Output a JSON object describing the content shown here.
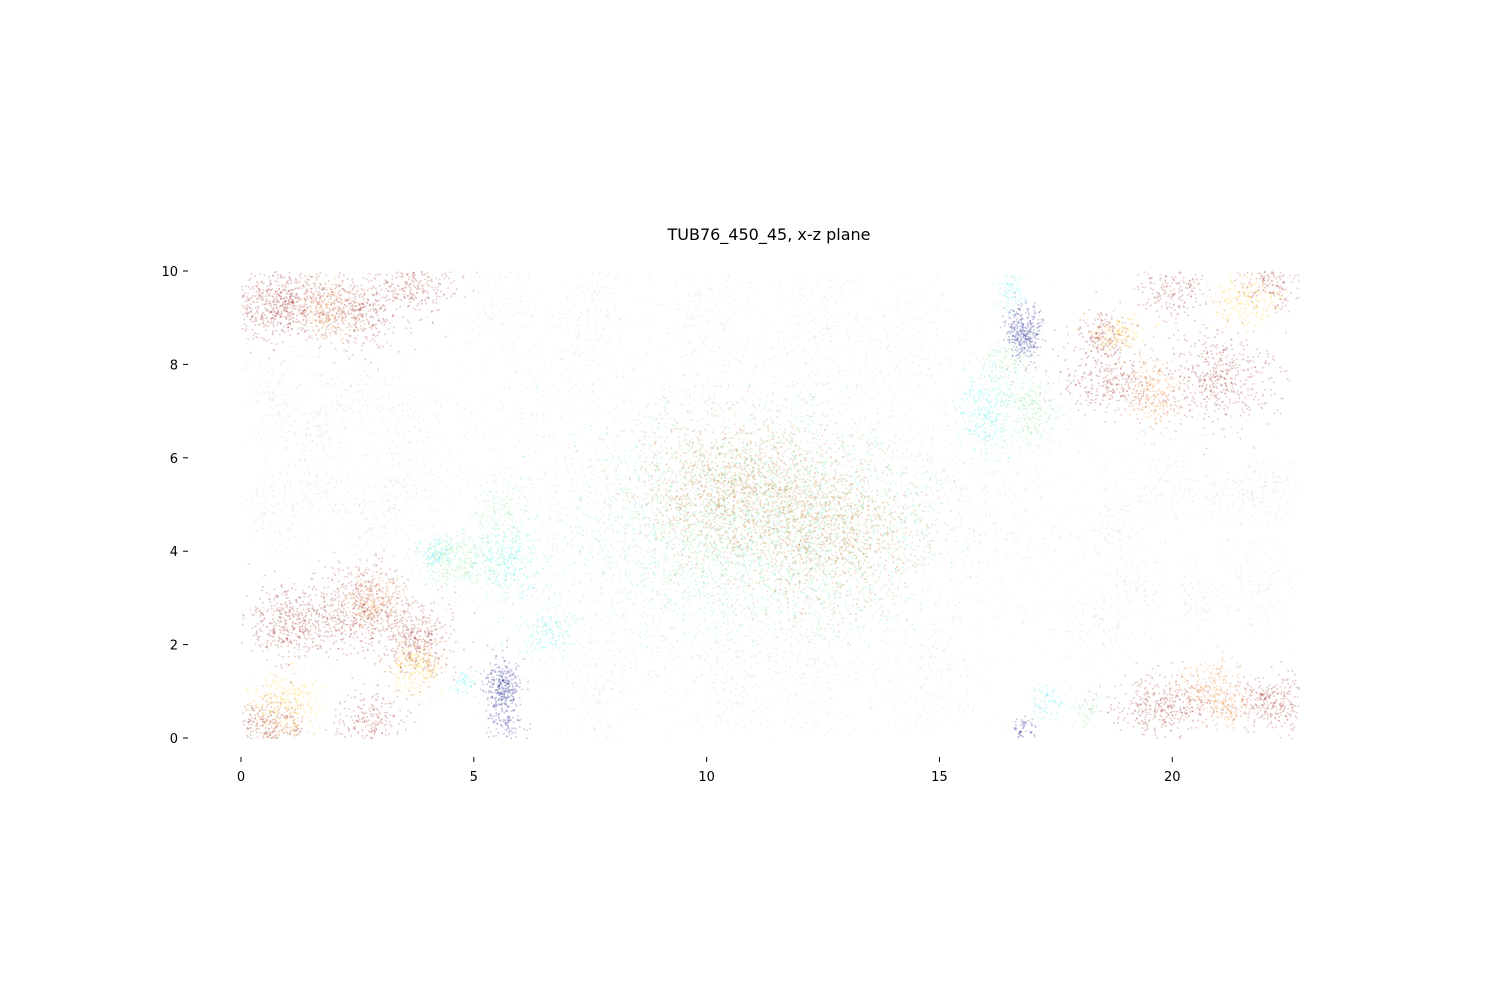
{
  "chart_data": {
    "type": "scatter",
    "title": "TUB76_450_45, x-z plane",
    "xlabel": "",
    "ylabel": "",
    "xlim": [
      0,
      22.7
    ],
    "ylim": [
      0,
      10
    ],
    "xticks": [
      "0",
      "5",
      "10",
      "15",
      "20"
    ],
    "yticks": [
      "0",
      "2",
      "4",
      "6",
      "8",
      "10"
    ],
    "grid": false,
    "legend": "none",
    "point_alpha": "low (dense translucent point cloud)",
    "colors": {
      "grey": "#a0a0a0",
      "dark_red": "#8b0000",
      "orange": "#e8720c",
      "gold": "#ffc20a",
      "navy": "#000080",
      "cyan": "#2ee8e8",
      "light_green": "#7de38a",
      "turquoise": "#40e0c0",
      "brown": "#b8620a"
    },
    "clusters": [
      {
        "color": "grey",
        "x": 10.5,
        "y": 5.0,
        "sx": 7.5,
        "sy": 2.6,
        "n": 2200
      },
      {
        "color": "grey",
        "x": 0.7,
        "y": 7.2,
        "sx": 0.3,
        "sy": 0.5,
        "n": 120
      },
      {
        "color": "grey",
        "x": 1.5,
        "y": 6.6,
        "sx": 0.3,
        "sy": 0.4,
        "n": 110
      },
      {
        "color": "grey",
        "x": 2.4,
        "y": 7.4,
        "sx": 0.4,
        "sy": 0.4,
        "n": 110
      },
      {
        "color": "grey",
        "x": 3.5,
        "y": 6.8,
        "sx": 0.4,
        "sy": 0.4,
        "n": 110
      },
      {
        "color": "grey",
        "x": 0.8,
        "y": 4.9,
        "sx": 0.4,
        "sy": 0.4,
        "n": 120
      },
      {
        "color": "grey",
        "x": 1.6,
        "y": 5.4,
        "sx": 0.4,
        "sy": 0.3,
        "n": 100
      },
      {
        "color": "grey",
        "x": 2.8,
        "y": 4.7,
        "sx": 0.3,
        "sy": 0.4,
        "n": 110
      },
      {
        "color": "grey",
        "x": 3.7,
        "y": 5.5,
        "sx": 0.4,
        "sy": 0.4,
        "n": 100
      },
      {
        "color": "grey",
        "x": 5.5,
        "y": 9.3,
        "sx": 0.5,
        "sy": 0.6,
        "n": 160
      },
      {
        "color": "grey",
        "x": 7.5,
        "y": 9.1,
        "sx": 0.5,
        "sy": 0.7,
        "n": 160
      },
      {
        "color": "grey",
        "x": 10.0,
        "y": 9.0,
        "sx": 0.5,
        "sy": 0.7,
        "n": 160
      },
      {
        "color": "grey",
        "x": 12.3,
        "y": 9.0,
        "sx": 0.5,
        "sy": 0.7,
        "n": 160
      },
      {
        "color": "grey",
        "x": 14.2,
        "y": 8.6,
        "sx": 0.5,
        "sy": 0.7,
        "n": 150
      },
      {
        "color": "grey",
        "x": 7.6,
        "y": 1.2,
        "sx": 0.5,
        "sy": 0.8,
        "n": 170
      },
      {
        "color": "grey",
        "x": 10.5,
        "y": 1.2,
        "sx": 0.5,
        "sy": 0.8,
        "n": 170
      },
      {
        "color": "grey",
        "x": 12.2,
        "y": 1.4,
        "sx": 0.5,
        "sy": 0.8,
        "n": 160
      },
      {
        "color": "grey",
        "x": 14.8,
        "y": 1.2,
        "sx": 0.5,
        "sy": 0.8,
        "n": 160
      },
      {
        "color": "grey",
        "x": 19.9,
        "y": 5.5,
        "sx": 0.4,
        "sy": 0.4,
        "n": 110
      },
      {
        "color": "grey",
        "x": 21.3,
        "y": 5.2,
        "sx": 0.4,
        "sy": 0.4,
        "n": 110
      },
      {
        "color": "grey",
        "x": 22.2,
        "y": 5.3,
        "sx": 0.4,
        "sy": 0.4,
        "n": 110
      },
      {
        "color": "grey",
        "x": 20.6,
        "y": 3.0,
        "sx": 0.4,
        "sy": 0.4,
        "n": 110
      },
      {
        "color": "grey",
        "x": 21.9,
        "y": 3.2,
        "sx": 0.4,
        "sy": 0.5,
        "n": 110
      },
      {
        "color": "grey",
        "x": 18.7,
        "y": 4.5,
        "sx": 0.3,
        "sy": 0.4,
        "n": 100
      },
      {
        "color": "grey",
        "x": 19.2,
        "y": 3.3,
        "sx": 0.3,
        "sy": 0.3,
        "n": 90
      },
      {
        "color": "grey",
        "x": 18.4,
        "y": 2.5,
        "sx": 0.4,
        "sy": 0.4,
        "n": 100
      },
      {
        "color": "light_green",
        "x": 10.7,
        "y": 4.6,
        "sx": 2.6,
        "sy": 1.6,
        "n": 3000
      },
      {
        "color": "turquoise",
        "x": 11.2,
        "y": 4.5,
        "sx": 2.4,
        "sy": 1.4,
        "n": 1500
      },
      {
        "color": "brown",
        "x": 10.5,
        "y": 5.4,
        "sx": 1.0,
        "sy": 0.8,
        "n": 1300
      },
      {
        "color": "brown",
        "x": 12.6,
        "y": 4.5,
        "sx": 1.0,
        "sy": 0.9,
        "n": 1300
      },
      {
        "color": "light_green",
        "x": 4.6,
        "y": 3.8,
        "sx": 0.4,
        "sy": 0.3,
        "n": 300
      },
      {
        "color": "light_green",
        "x": 5.5,
        "y": 4.6,
        "sx": 0.3,
        "sy": 0.5,
        "n": 200
      },
      {
        "color": "cyan",
        "x": 5.7,
        "y": 3.8,
        "sx": 0.4,
        "sy": 0.4,
        "n": 300
      },
      {
        "color": "cyan",
        "x": 4.2,
        "y": 4.0,
        "sx": 0.2,
        "sy": 0.2,
        "n": 120
      },
      {
        "color": "cyan",
        "x": 6.6,
        "y": 2.3,
        "sx": 0.3,
        "sy": 0.3,
        "n": 160
      },
      {
        "color": "cyan",
        "x": 4.8,
        "y": 1.2,
        "sx": 0.15,
        "sy": 0.15,
        "n": 60
      },
      {
        "color": "light_green",
        "x": 16.5,
        "y": 8.1,
        "sx": 0.3,
        "sy": 0.3,
        "n": 140
      },
      {
        "color": "light_green",
        "x": 17.0,
        "y": 7.0,
        "sx": 0.4,
        "sy": 0.4,
        "n": 300
      },
      {
        "color": "cyan",
        "x": 16.0,
        "y": 7.1,
        "sx": 0.3,
        "sy": 0.5,
        "n": 300
      },
      {
        "color": "cyan",
        "x": 16.5,
        "y": 9.6,
        "sx": 0.15,
        "sy": 0.2,
        "n": 80
      },
      {
        "color": "cyan",
        "x": 17.3,
        "y": 0.8,
        "sx": 0.2,
        "sy": 0.2,
        "n": 80
      },
      {
        "color": "light_green",
        "x": 18.2,
        "y": 0.6,
        "sx": 0.15,
        "sy": 0.2,
        "n": 60
      },
      {
        "color": "navy",
        "x": 16.8,
        "y": 8.7,
        "sx": 0.2,
        "sy": 0.3,
        "n": 350
      },
      {
        "color": "navy",
        "x": 5.6,
        "y": 1.1,
        "sx": 0.2,
        "sy": 0.3,
        "n": 350
      },
      {
        "color": "navy",
        "x": 5.7,
        "y": 0.3,
        "sx": 0.2,
        "sy": 0.2,
        "n": 90
      },
      {
        "color": "navy",
        "x": 16.8,
        "y": 0.2,
        "sx": 0.15,
        "sy": 0.15,
        "n": 60
      },
      {
        "color": "dark_red",
        "x": 0.8,
        "y": 9.3,
        "sx": 0.5,
        "sy": 0.4,
        "n": 600
      },
      {
        "color": "dark_red",
        "x": 2.4,
        "y": 9.2,
        "sx": 0.6,
        "sy": 0.4,
        "n": 500
      },
      {
        "color": "dark_red",
        "x": 3.8,
        "y": 9.8,
        "sx": 0.4,
        "sy": 0.3,
        "n": 250
      },
      {
        "color": "orange",
        "x": 1.8,
        "y": 9.2,
        "sx": 0.4,
        "sy": 0.3,
        "n": 250
      },
      {
        "color": "dark_red",
        "x": 1.1,
        "y": 2.5,
        "sx": 0.5,
        "sy": 0.4,
        "n": 500
      },
      {
        "color": "dark_red",
        "x": 2.6,
        "y": 2.8,
        "sx": 0.5,
        "sy": 0.5,
        "n": 500
      },
      {
        "color": "dark_red",
        "x": 3.8,
        "y": 2.1,
        "sx": 0.4,
        "sy": 0.4,
        "n": 400
      },
      {
        "color": "dark_red",
        "x": 0.6,
        "y": 0.3,
        "sx": 0.4,
        "sy": 0.3,
        "n": 250
      },
      {
        "color": "dark_red",
        "x": 2.8,
        "y": 0.4,
        "sx": 0.4,
        "sy": 0.3,
        "n": 200
      },
      {
        "color": "orange",
        "x": 2.8,
        "y": 2.9,
        "sx": 0.3,
        "sy": 0.3,
        "n": 220
      },
      {
        "color": "orange",
        "x": 0.9,
        "y": 0.2,
        "sx": 0.3,
        "sy": 0.2,
        "n": 120
      },
      {
        "color": "gold",
        "x": 0.9,
        "y": 0.8,
        "sx": 0.4,
        "sy": 0.3,
        "n": 300
      },
      {
        "color": "gold",
        "x": 3.8,
        "y": 1.5,
        "sx": 0.3,
        "sy": 0.3,
        "n": 250
      },
      {
        "color": "dark_red",
        "x": 20.0,
        "y": 9.6,
        "sx": 0.4,
        "sy": 0.3,
        "n": 200
      },
      {
        "color": "dark_red",
        "x": 18.7,
        "y": 7.6,
        "sx": 0.5,
        "sy": 0.3,
        "n": 300
      },
      {
        "color": "dark_red",
        "x": 21.0,
        "y": 7.7,
        "sx": 0.6,
        "sy": 0.5,
        "n": 500
      },
      {
        "color": "dark_red",
        "x": 22.2,
        "y": 9.8,
        "sx": 0.4,
        "sy": 0.3,
        "n": 200
      },
      {
        "color": "dark_red",
        "x": 18.5,
        "y": 8.6,
        "sx": 0.3,
        "sy": 0.3,
        "n": 200
      },
      {
        "color": "orange",
        "x": 19.6,
        "y": 7.4,
        "sx": 0.3,
        "sy": 0.4,
        "n": 250
      },
      {
        "color": "gold",
        "x": 18.8,
        "y": 8.7,
        "sx": 0.3,
        "sy": 0.2,
        "n": 160
      },
      {
        "color": "gold",
        "x": 21.6,
        "y": 9.4,
        "sx": 0.4,
        "sy": 0.3,
        "n": 250
      },
      {
        "color": "dark_red",
        "x": 19.8,
        "y": 0.7,
        "sx": 0.6,
        "sy": 0.3,
        "n": 400
      },
      {
        "color": "dark_red",
        "x": 22.1,
        "y": 0.8,
        "sx": 0.4,
        "sy": 0.3,
        "n": 300
      },
      {
        "color": "orange",
        "x": 20.8,
        "y": 1.1,
        "sx": 0.4,
        "sy": 0.3,
        "n": 250
      },
      {
        "color": "orange",
        "x": 21.2,
        "y": 0.6,
        "sx": 0.2,
        "sy": 0.2,
        "n": 100
      }
    ]
  }
}
